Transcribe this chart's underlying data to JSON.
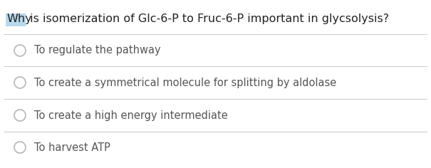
{
  "title_highlighted": "Why",
  "title_rest": " is isomerization of Glc-6-P to Fruc-6-P important in glycsolysis?",
  "highlight_color": "#b8d8ed",
  "title_color": "#222222",
  "options": [
    "To regulate the pathway",
    "To create a symmetrical molecule for splitting by aldolase",
    "To create a high energy intermediate",
    "To harvest ATP"
  ],
  "option_text_color": "#555555",
  "background_color": "#ffffff",
  "line_color": "#cccccc",
  "circle_edge_color": "#bbbbbb",
  "title_fontsize": 11.5,
  "option_fontsize": 10.5
}
